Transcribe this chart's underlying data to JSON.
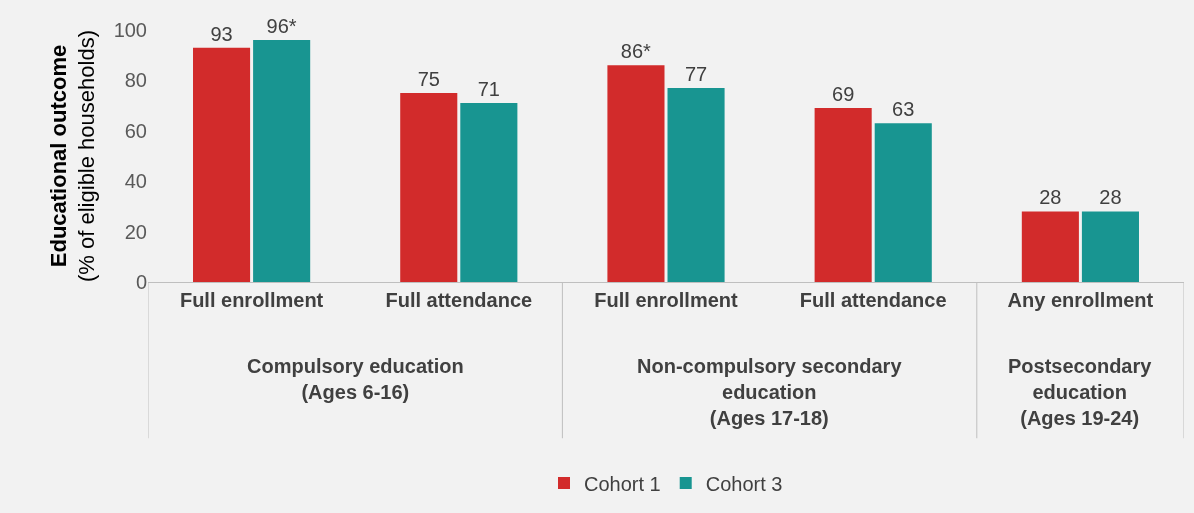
{
  "chart_data": {
    "type": "bar",
    "ylabel": "Educational outcome\n(% of eligible households)",
    "categories": [
      "Full enrollment",
      "Full attendance",
      "Full enrollment",
      "Full attendance",
      "Any enrollment"
    ],
    "series": [
      {
        "name": "Cohort 1",
        "color": "#d22b2b",
        "values": [
          93,
          75,
          86,
          69,
          28
        ],
        "value_labels": [
          "93",
          "75",
          "86*",
          "69",
          "28"
        ]
      },
      {
        "name": "Cohort 3",
        "color": "#189591",
        "values": [
          96,
          71,
          77,
          63,
          28
        ],
        "value_labels": [
          "96*",
          "71",
          "77",
          "63",
          "28"
        ]
      }
    ],
    "annotations": [
      "Compulsory education\n(Ages 6-16)",
      "Non-compulsory secondary\neducation\n(Ages 17-18)",
      "Postsecondary\neducation\n(Ages 19-24)"
    ],
    "ylim": [
      0,
      100
    ],
    "yticks": [
      0,
      20,
      40,
      60,
      80,
      100
    ],
    "grid": false,
    "legend": "bottom"
  }
}
